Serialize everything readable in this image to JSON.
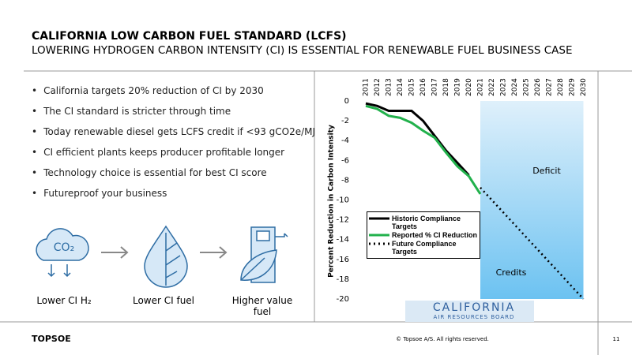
{
  "header": {
    "title": "CALIFORNIA LOW CARBON FUEL STANDARD (LCFS)",
    "subtitle": "LOWERING HYDROGEN CARBON INTENSITY (CI) IS ESSENTIAL FOR RENEWABLE FUEL BUSINESS CASE"
  },
  "bullets": [
    "California targets 20% reduction of CI by 2030",
    "The CI standard is stricter through time",
    "Today renewable diesel gets LCFS credit if <93 gCO2e/MJ",
    "CI efficient plants keeps producer profitable longer",
    "Technology choice is essential for best CI score",
    "Futureproof your business"
  ],
  "icons": {
    "co2": "CO₂",
    "labels": [
      "Lower CI H₂",
      "Lower CI fuel",
      "Higher value fuel"
    ]
  },
  "logo": {
    "name": "CALIFORNIA",
    "sub": "AIR RESOURCES BOARD"
  },
  "footer": {
    "brand": "TOPSOE",
    "copyright": "© Topsoe A/S. All rights reserved.",
    "page": "11"
  },
  "chart_data": {
    "type": "line",
    "y_label": "Percent Reduction in Carbon Intensity",
    "categories": [
      "2011",
      "2012",
      "2013",
      "2014",
      "2015",
      "2016",
      "2017",
      "2018",
      "2019",
      "2020",
      "2021",
      "2022",
      "2023",
      "2024",
      "2025",
      "2026",
      "2027",
      "2028",
      "2029",
      "2030"
    ],
    "series": [
      {
        "name": "Historic Compliance Targets",
        "color": "#000000",
        "style": "solid",
        "values": [
          -0.25,
          -0.5,
          -1,
          -1,
          -1,
          -2,
          -3.5,
          -5,
          -6.25,
          -7.5,
          null,
          null,
          null,
          null,
          null,
          null,
          null,
          null,
          null,
          null
        ]
      },
      {
        "name": "Reported % CI Reduction",
        "color": "#22b14c",
        "style": "solid",
        "values": [
          -0.5,
          -0.8,
          -1.5,
          -1.7,
          -2.2,
          -3,
          -3.7,
          -5.2,
          -6.6,
          -7.6,
          -9.4,
          null,
          null,
          null,
          null,
          null,
          null,
          null,
          null,
          null
        ]
      },
      {
        "name": "Future Compliance Targets",
        "color": "#000000",
        "style": "dotted",
        "values": [
          null,
          null,
          null,
          null,
          null,
          null,
          null,
          null,
          null,
          null,
          -8.75,
          -10,
          -11.25,
          -12.5,
          -13.75,
          -15,
          -16.25,
          -17.5,
          -18.75,
          -20
        ]
      }
    ],
    "ylim": [
      -20,
      0
    ],
    "yticks": [
      0,
      -2,
      -4,
      -6,
      -8,
      -10,
      -12,
      -14,
      -16,
      -18,
      -20
    ],
    "shaded_region": {
      "from": "2021",
      "to": "2030"
    },
    "annotations": [
      "Deficit",
      "Credits"
    ]
  }
}
